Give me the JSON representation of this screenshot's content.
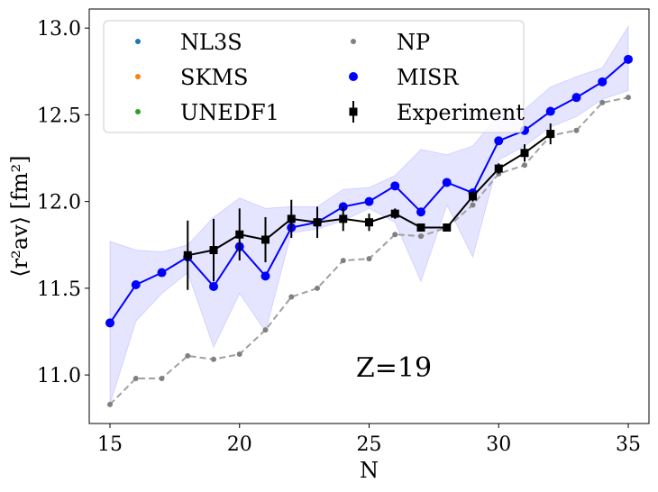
{
  "chart_data": {
    "type": "line",
    "xlabel": "N",
    "ylabel": "⟨r²av⟩ [fm²]",
    "xlim": [
      14.2,
      35.8
    ],
    "ylim": [
      10.72,
      13.11
    ],
    "x_ticks": [
      "15",
      "20",
      "25",
      "30",
      "35"
    ],
    "y_ticks": [
      "11.0",
      "11.5",
      "12.0",
      "12.5",
      "13.0"
    ],
    "annotation": "Z=19",
    "legend_position": "top-left, two columns",
    "series": [
      {
        "name": "NL3S",
        "color": "#1f77b4",
        "style": "points",
        "x": [],
        "y": []
      },
      {
        "name": "SKMS",
        "color": "#ff7f0e",
        "style": "points",
        "x": [],
        "y": []
      },
      {
        "name": "UNEDF1",
        "color": "#2ca02c",
        "style": "points",
        "x": [],
        "y": []
      },
      {
        "name": "NP",
        "color": "#808080",
        "style": "dashed-gray-points",
        "x": [
          15,
          16,
          17,
          18,
          19,
          20,
          21,
          22,
          23,
          24,
          25,
          26,
          27,
          28,
          29,
          30,
          31,
          32,
          33,
          34,
          35
        ],
        "y": [
          10.83,
          10.98,
          10.98,
          11.11,
          11.09,
          11.12,
          11.26,
          11.45,
          11.5,
          11.66,
          11.67,
          11.81,
          11.8,
          11.85,
          11.98,
          12.16,
          12.21,
          12.38,
          12.41,
          12.57,
          12.6
        ]
      },
      {
        "name": "MISR",
        "color": "#0000ff",
        "style": "line-markers",
        "x": [
          15,
          16,
          17,
          18,
          19,
          20,
          21,
          22,
          23,
          24,
          25,
          26,
          27,
          28,
          29,
          30,
          31,
          32,
          33,
          34,
          35
        ],
        "y": [
          11.3,
          11.52,
          11.59,
          11.68,
          11.51,
          11.74,
          11.57,
          11.85,
          11.88,
          11.97,
          12.0,
          12.09,
          11.94,
          12.11,
          12.05,
          12.35,
          12.41,
          12.52,
          12.6,
          12.69,
          12.82
        ],
        "band_upper": [
          11.77,
          11.72,
          11.71,
          11.75,
          11.91,
          12.02,
          11.96,
          11.97,
          11.97,
          12.07,
          12.08,
          12.15,
          12.3,
          12.27,
          12.32,
          12.5,
          12.53,
          12.66,
          12.72,
          12.77,
          13.01
        ],
        "band_lower": [
          10.83,
          11.31,
          11.47,
          11.59,
          11.16,
          11.47,
          11.25,
          11.82,
          11.84,
          11.89,
          11.96,
          11.88,
          11.54,
          11.98,
          11.68,
          12.24,
          12.32,
          12.43,
          12.49,
          12.59,
          12.64
        ]
      },
      {
        "name": "Experiment",
        "color": "#000000",
        "style": "squares-errorbars",
        "x": [
          18,
          19,
          20,
          21,
          22,
          23,
          24,
          25,
          26,
          27,
          28,
          29,
          30,
          31,
          32
        ],
        "y": [
          11.69,
          11.72,
          11.81,
          11.78,
          11.9,
          11.88,
          11.9,
          11.88,
          11.93,
          11.85,
          11.85,
          12.03,
          12.19,
          12.28,
          12.39
        ],
        "yerr": [
          0.2,
          0.18,
          0.15,
          0.13,
          0.11,
          0.09,
          0.07,
          0.05,
          0.03,
          0.02,
          0.02,
          0.03,
          0.03,
          0.05,
          0.06
        ]
      }
    ]
  }
}
